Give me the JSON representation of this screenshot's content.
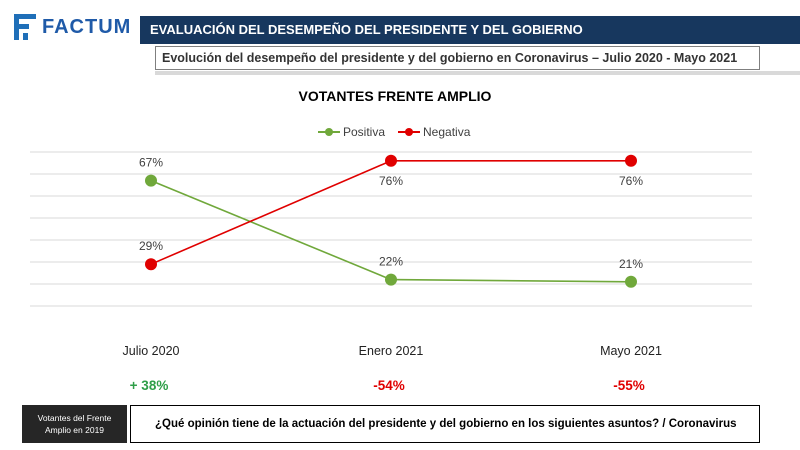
{
  "header": {
    "logo_text": "FACTUM",
    "title": "EVALUACIÓN DEL DESEMPEÑO DEL PRESIDENTE Y DEL GOBIERNO",
    "subtitle": "Evolución del desempeño del presidente y del gobierno en Coronavirus – Julio 2020  - Mayo 2021"
  },
  "chart_data": {
    "type": "line",
    "title": "VOTANTES FRENTE AMPLIO",
    "categories": [
      "Julio 2020",
      "Enero 2021",
      "Mayo 2021"
    ],
    "series": [
      {
        "name": "Positiva",
        "color": "#70a83b",
        "values": [
          67,
          22,
          21
        ],
        "labels": [
          "67%",
          "22%",
          "21%"
        ]
      },
      {
        "name": "Negativa",
        "color": "#e00000",
        "values": [
          29,
          76,
          76
        ],
        "labels": [
          "29%",
          "76%",
          "76%"
        ]
      }
    ],
    "differences": [
      "+ 38%",
      "-54%",
      "-55%"
    ],
    "difference_colors": [
      "#2e9e48",
      "#e00000",
      "#e00000"
    ],
    "ylim": [
      0,
      80
    ],
    "grid": true,
    "legend": "top-center"
  },
  "footer": {
    "sample_label": "Votantes del Frente Amplio en 2019",
    "question": "¿Qué opinión tiene de la actuación del presidente y del gobierno en los siguientes asuntos? / Coronavirus"
  }
}
